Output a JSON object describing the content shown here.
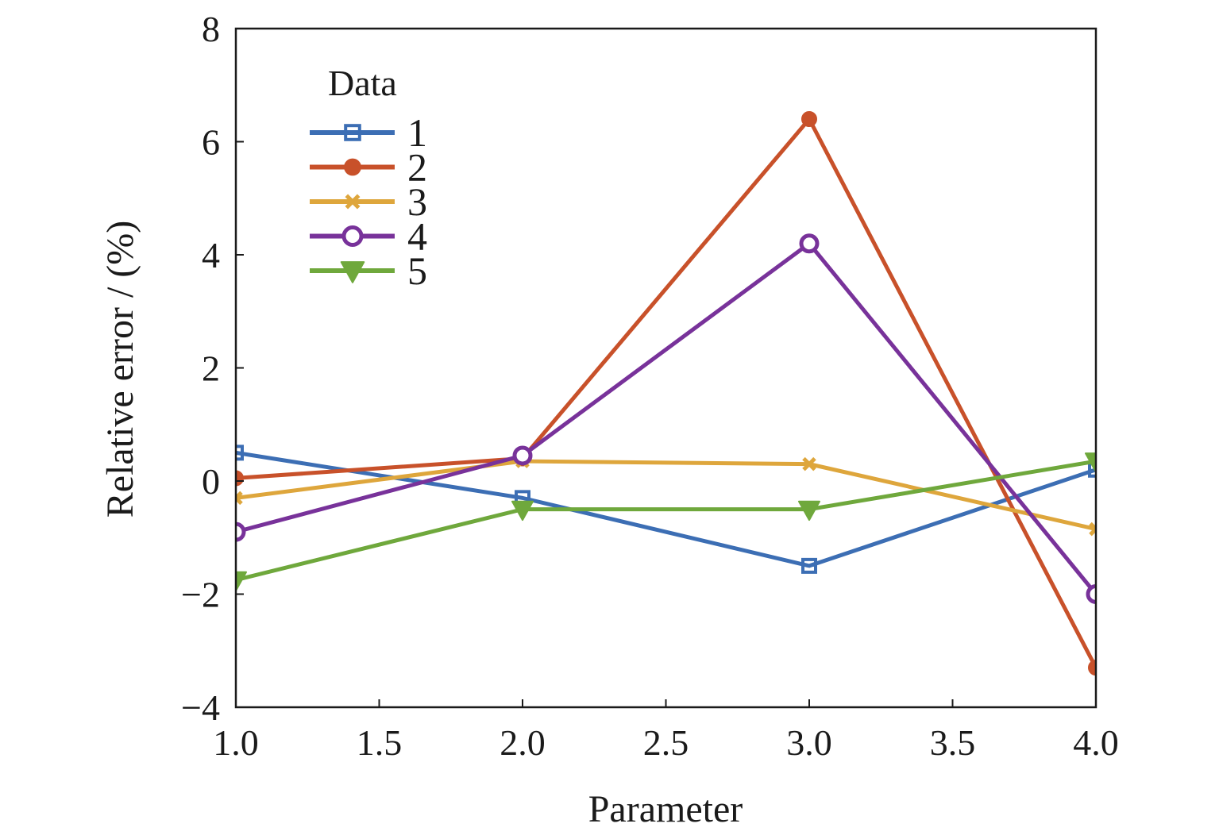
{
  "chart_data": {
    "type": "line",
    "xlabel": "Parameter",
    "ylabel": "Relative error / (%)",
    "xlim": [
      1.0,
      4.0
    ],
    "ylim": [
      -4,
      8
    ],
    "xticks": [
      "1.0",
      "1.5",
      "2.0",
      "2.5",
      "3.0",
      "3.5",
      "4.0"
    ],
    "xtick_values": [
      1.0,
      1.5,
      2.0,
      2.5,
      3.0,
      3.5,
      4.0
    ],
    "yticks": [
      "−4",
      "−2",
      "0",
      "2",
      "4",
      "6",
      "8"
    ],
    "ytick_values": [
      -4,
      -2,
      0,
      2,
      4,
      6,
      8
    ],
    "x": [
      1.0,
      2.0,
      3.0,
      4.0
    ],
    "legend_title": "Data",
    "legend_position": "top-left",
    "grid": false,
    "series": [
      {
        "name": "1",
        "color": "#3c6eb4",
        "marker": "square",
        "values": [
          0.5,
          -0.3,
          -1.5,
          0.2
        ]
      },
      {
        "name": "2",
        "color": "#c8512a",
        "marker": "filled-circle",
        "values": [
          0.05,
          0.4,
          6.4,
          -3.3
        ]
      },
      {
        "name": "3",
        "color": "#dea63c",
        "marker": "x",
        "values": [
          -0.3,
          0.35,
          0.3,
          -0.85
        ]
      },
      {
        "name": "4",
        "color": "#78329a",
        "marker": "open-circle",
        "values": [
          -0.9,
          0.45,
          4.2,
          -2.0
        ]
      },
      {
        "name": "5",
        "color": "#6fa83c",
        "marker": "triangle-down",
        "values": [
          -1.75,
          -0.5,
          -0.5,
          0.35
        ]
      }
    ]
  }
}
